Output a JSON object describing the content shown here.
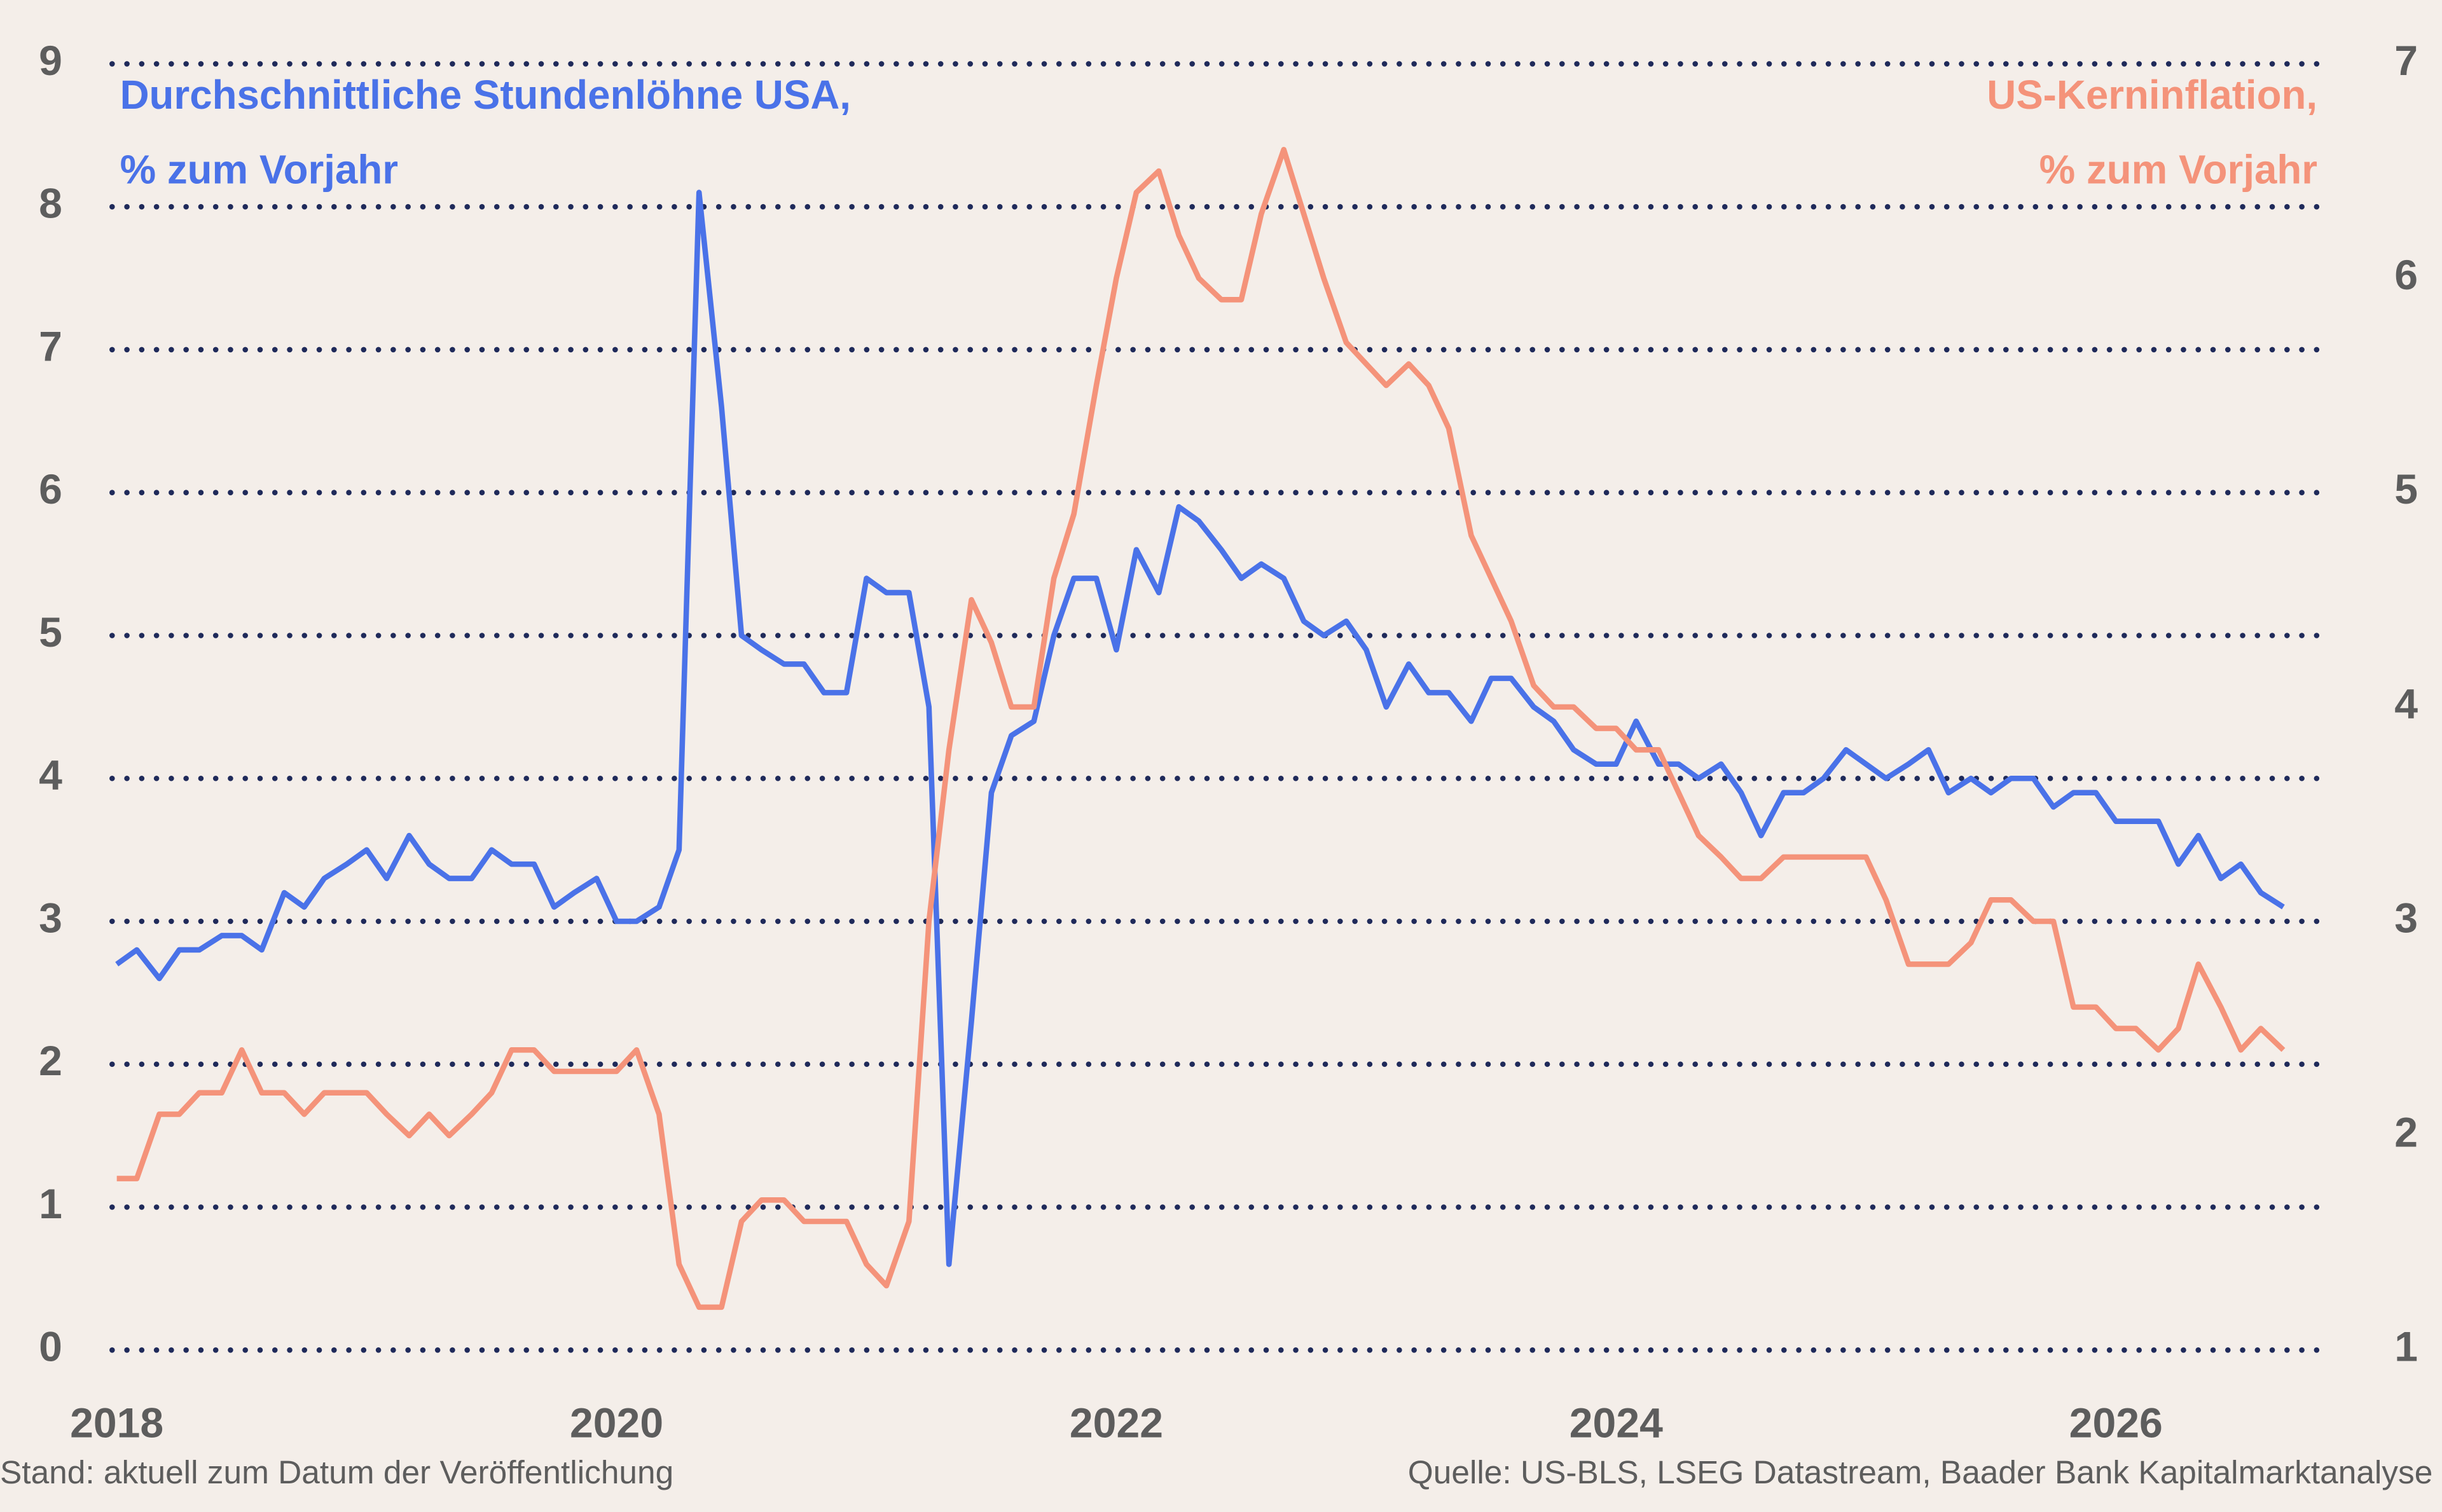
{
  "chart_data": {
    "type": "line",
    "ylabel": [
      "Durchschnittliche Stundenlöhne USA,",
      "% zum Vorjahr"
    ],
    "y2label": [
      "US-Kerninflation,",
      "% zum Vorjahr"
    ],
    "note": "Stand: aktuell zum Datum der Veröffentlichung",
    "source": "Quelle: US-BLS, LSEG Datastream, Baader Bank Kapitalmarktanalyse",
    "x": [
      2018,
      2018.08,
      2018.17,
      2018.25,
      2018.33,
      2018.42,
      2018.5,
      2018.58,
      2018.67,
      2018.75,
      2018.83,
      2018.92,
      2019,
      2019.08,
      2019.17,
      2019.25,
      2019.33,
      2019.42,
      2019.5,
      2019.58,
      2019.67,
      2019.75,
      2019.83,
      2019.92,
      2020,
      2020.08,
      2020.17,
      2020.25,
      2020.33,
      2020.42,
      2020.5,
      2020.58,
      2020.67,
      2020.75,
      2020.83,
      2020.92,
      2021,
      2021.08,
      2021.17,
      2021.25,
      2021.33,
      2021.42,
      2021.5,
      2021.58,
      2021.67,
      2021.75,
      2021.83,
      2021.92,
      2022,
      2022.08,
      2022.17,
      2022.25,
      2022.33,
      2022.42,
      2022.5,
      2022.58,
      2022.67,
      2022.75,
      2022.83,
      2022.92,
      2023,
      2023.08,
      2023.17,
      2023.25,
      2023.33,
      2023.42,
      2023.5,
      2023.58,
      2023.67,
      2023.75,
      2023.83,
      2023.92,
      2024,
      2024.08,
      2024.17,
      2024.25,
      2024.33,
      2024.42,
      2024.5,
      2024.58,
      2024.67,
      2024.75,
      2024.83,
      2024.92,
      2025,
      2025.08,
      2025.17,
      2025.25,
      2025.33,
      2025.42,
      2025.5,
      2025.58,
      2025.67,
      2025.75,
      2025.83,
      2025.92,
      2026,
      2026.08,
      2026.17,
      2026.25,
      2026.33,
      2026.42,
      2026.5,
      2026.58,
      2026.67
    ],
    "series": [
      {
        "color": "#4a72e8",
        "axis": "y",
        "values": [
          2.7,
          2.8,
          2.6,
          2.8,
          2.8,
          2.9,
          2.9,
          2.8,
          3.2,
          3.1,
          3.3,
          3.4,
          3.5,
          3.3,
          3.6,
          3.4,
          3.3,
          3.3,
          3.5,
          3.4,
          3.4,
          3.1,
          3.2,
          3.3,
          3.0,
          3.0,
          3.1,
          3.5,
          8.1,
          6.6,
          5.0,
          4.9,
          4.8,
          4.8,
          4.6,
          4.6,
          5.4,
          5.3,
          5.3,
          4.5,
          0.6,
          2.3,
          3.9,
          4.3,
          4.4,
          5.0,
          5.4,
          5.4,
          4.9,
          5.6,
          5.3,
          5.9,
          5.8,
          5.6,
          5.4,
          5.5,
          5.4,
          5.1,
          5.0,
          5.1,
          4.9,
          4.5,
          4.8,
          4.6,
          4.6,
          4.4,
          4.7,
          4.7,
          4.5,
          4.4,
          4.2,
          4.1,
          4.1,
          4.4,
          4.1,
          4.1,
          4.0,
          4.1,
          3.9,
          3.6,
          3.9,
          3.9,
          4.0,
          4.2,
          4.1,
          4.0,
          4.1,
          4.2,
          3.9,
          4.0,
          3.9,
          4.0,
          4.0,
          3.8,
          3.9,
          3.9,
          3.7,
          3.7,
          3.7,
          3.4,
          3.6,
          3.3,
          3.4,
          3.2,
          3.1
        ]
      },
      {
        "color": "#f4937a",
        "axis": "y2",
        "values": [
          1.8,
          1.8,
          2.1,
          2.1,
          2.2,
          2.2,
          2.4,
          2.2,
          2.2,
          2.1,
          2.2,
          2.2,
          2.2,
          2.1,
          2.0,
          2.1,
          2.0,
          2.1,
          2.2,
          2.4,
          2.4,
          2.3,
          2.3,
          2.3,
          2.3,
          2.4,
          2.1,
          1.4,
          1.2,
          1.2,
          1.6,
          1.7,
          1.7,
          1.6,
          1.6,
          1.6,
          1.4,
          1.3,
          1.6,
          3.0,
          3.8,
          4.5,
          4.3,
          4.0,
          4.0,
          4.6,
          4.9,
          5.5,
          6.0,
          6.4,
          6.5,
          6.2,
          6.0,
          5.9,
          5.9,
          6.3,
          6.6,
          6.3,
          6.0,
          5.7,
          5.6,
          5.5,
          5.6,
          5.5,
          5.3,
          4.8,
          4.6,
          4.4,
          4.1,
          4.0,
          4.0,
          3.9,
          3.9,
          3.8,
          3.8,
          3.6,
          3.4,
          3.3,
          3.2,
          3.2,
          3.3,
          3.3,
          3.3,
          3.3,
          3.3,
          3.1,
          2.8,
          2.8,
          2.8,
          2.9,
          3.1,
          3.1,
          3.0,
          3.0,
          2.6,
          2.6,
          2.5,
          2.5,
          2.4,
          2.5,
          2.8,
          2.6,
          2.4,
          2.5,
          2.4
        ]
      }
    ],
    "xlim": [
      2018,
      2026.85
    ],
    "xticks": [
      2018,
      2020,
      2022,
      2024,
      2026
    ],
    "ylim": [
      0,
      9
    ],
    "yticks": [
      0,
      1,
      2,
      3,
      4,
      5,
      6,
      7,
      8,
      9
    ],
    "y2lim": [
      1,
      7
    ],
    "y2ticks": [
      1,
      2,
      3,
      4,
      5,
      6,
      7
    ],
    "grid": true
  }
}
